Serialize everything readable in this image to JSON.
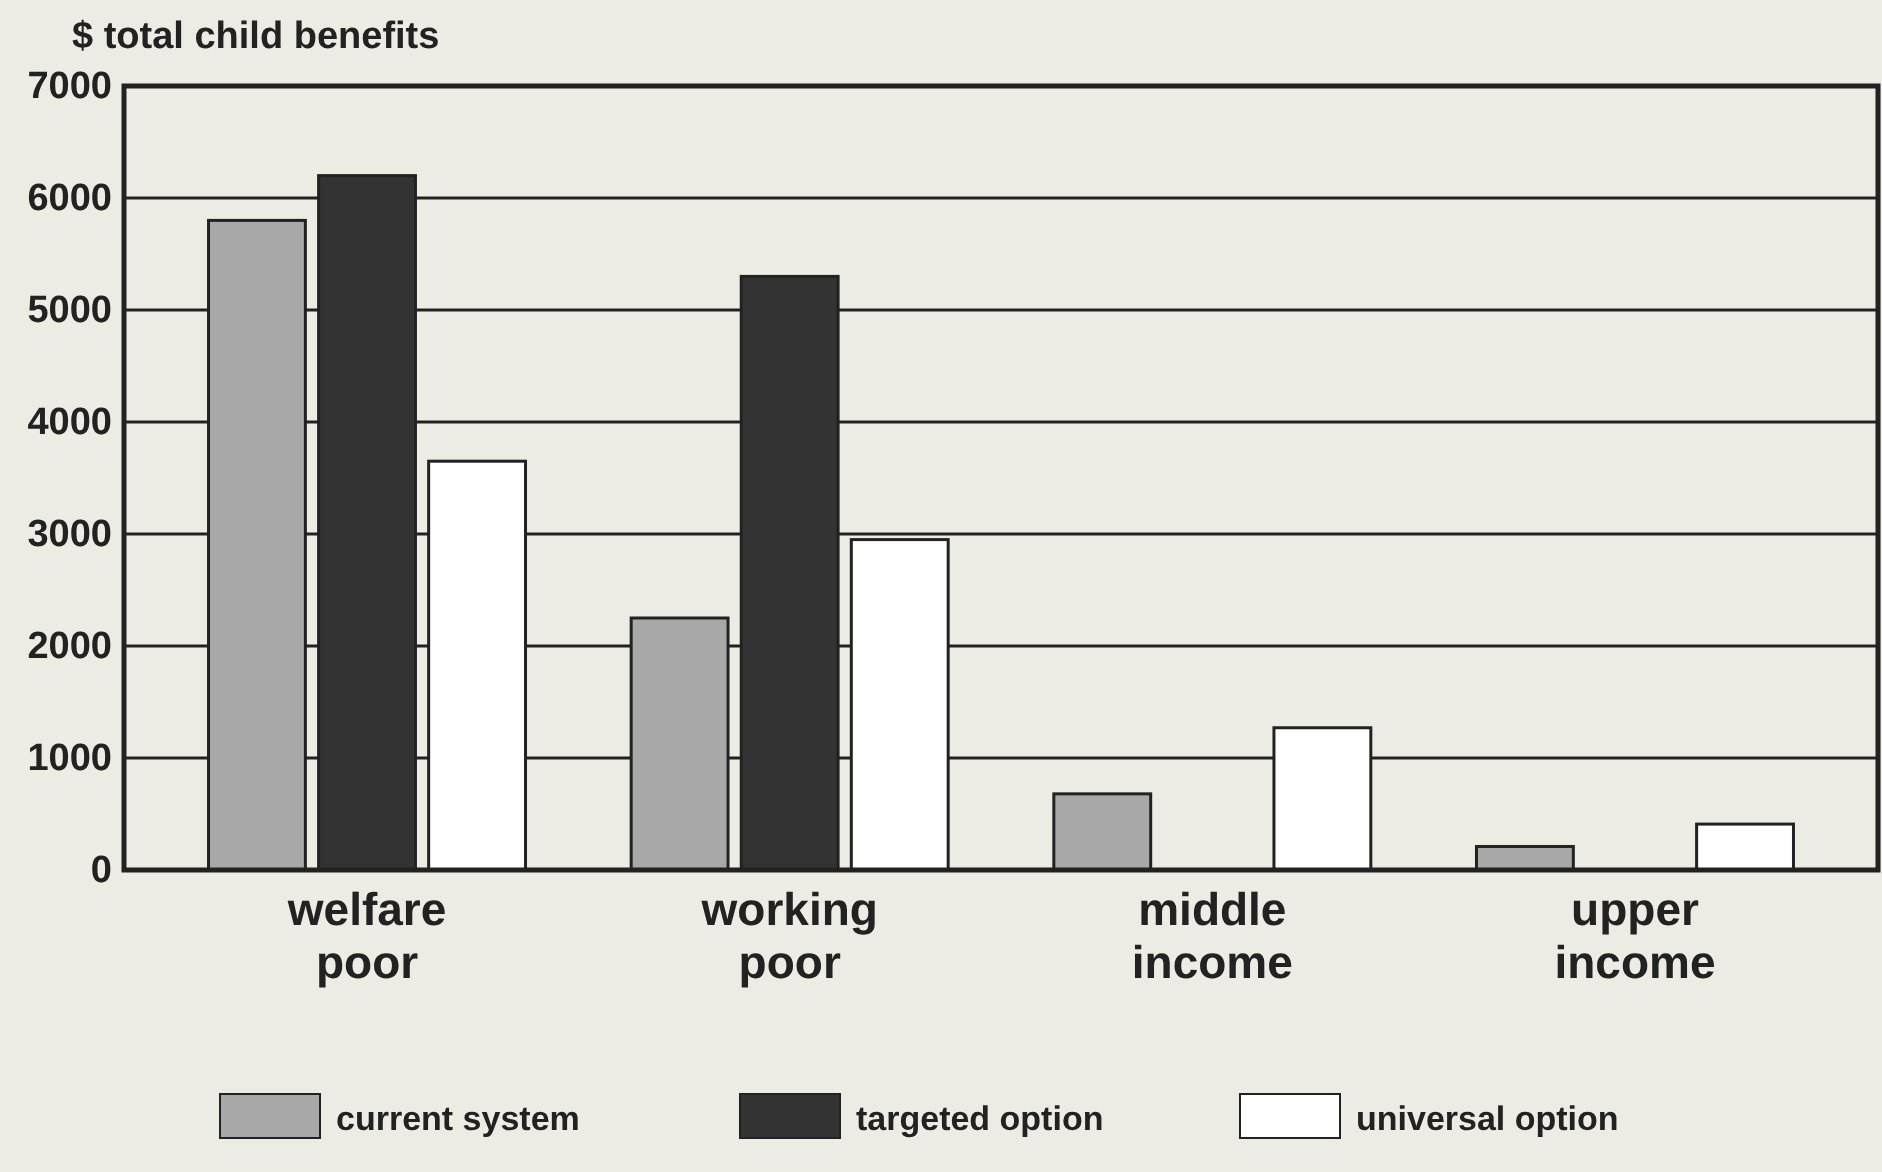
{
  "chart_data": {
    "type": "bar",
    "ylabel": "$ total child benefits",
    "categories": [
      "welfare poor",
      "working poor",
      "middle income",
      "upper income"
    ],
    "series": [
      {
        "name": "current system",
        "color": "#a8a8a8",
        "values": [
          5800,
          2250,
          680,
          210
        ]
      },
      {
        "name": "targeted option",
        "color": "#333333",
        "values": [
          6200,
          5300,
          0,
          0
        ]
      },
      {
        "name": "universal option",
        "color": "#ffffff",
        "values": [
          3650,
          2950,
          1270,
          410
        ]
      }
    ],
    "ylim": [
      0,
      7000
    ],
    "yticks": [
      0,
      1000,
      2000,
      3000,
      4000,
      5000,
      6000,
      7000
    ],
    "grid": "y",
    "legend": "bottom"
  }
}
